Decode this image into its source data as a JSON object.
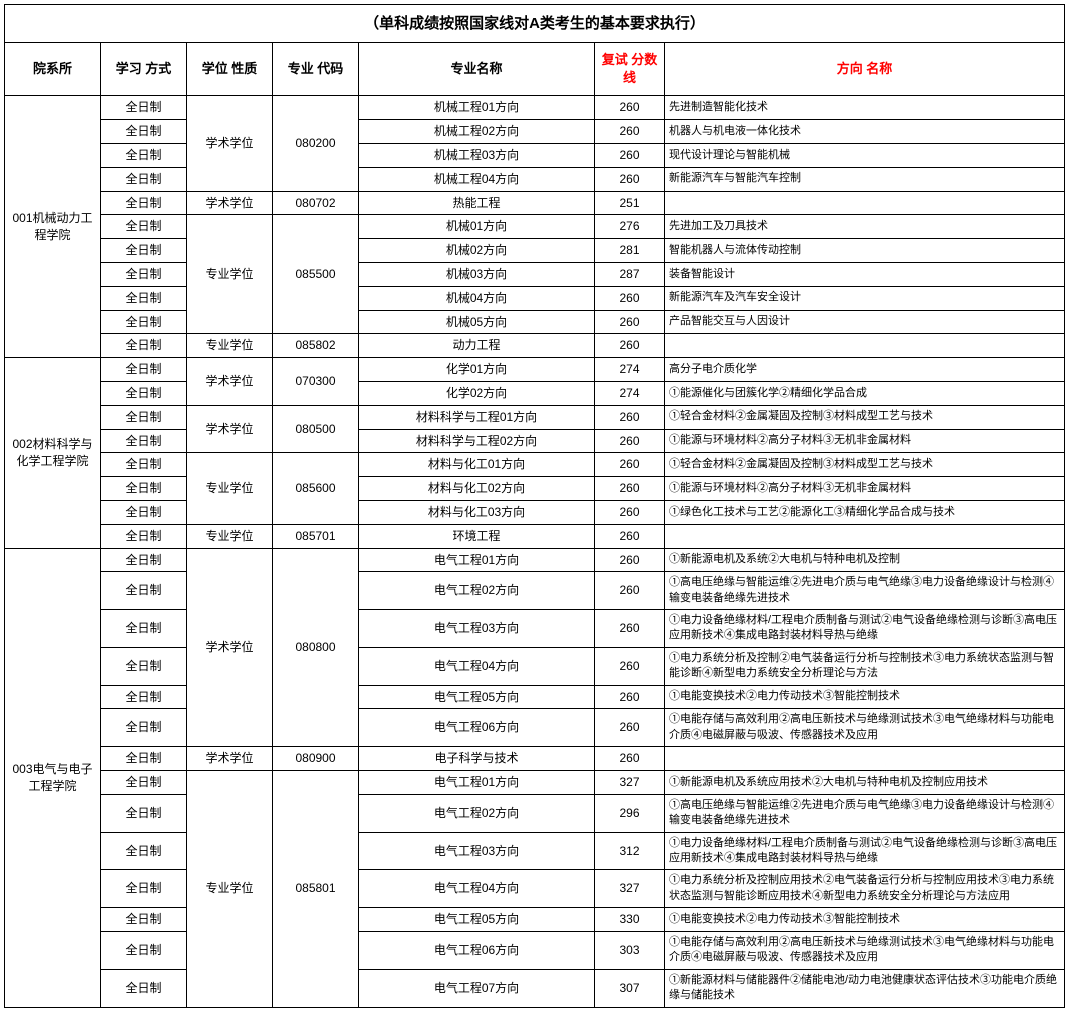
{
  "title": "（单科成绩按照国家线对A类考生的基本要求执行）",
  "headers": {
    "dept": "院系所",
    "study": "学习\n方式",
    "degree": "学位\n性质",
    "code": "专业\n代码",
    "major": "专业名称",
    "score": "复试\n分数线",
    "dir": "方向\n名称"
  },
  "colors": {
    "header_red": "#ff0000",
    "border": "#000000",
    "text": "#000000",
    "bg": "#ffffff"
  },
  "fontsize": {
    "title": 15,
    "header": 13,
    "cell": 12,
    "dir": 11
  },
  "depts": [
    {
      "name": "001机械动力工程学院",
      "rows": [
        {
          "study": "全日制",
          "degree": "学术学位",
          "degree_span": 4,
          "code": "080200",
          "code_span": 4,
          "major": "机械工程01方向",
          "score": "260",
          "dir": "先进制造智能化技术"
        },
        {
          "study": "全日制",
          "major": "机械工程02方向",
          "score": "260",
          "dir": "机器人与机电液一体化技术"
        },
        {
          "study": "全日制",
          "major": "机械工程03方向",
          "score": "260",
          "dir": "现代设计理论与智能机械"
        },
        {
          "study": "全日制",
          "major": "机械工程04方向",
          "score": "260",
          "dir": "新能源汽车与智能汽车控制"
        },
        {
          "study": "全日制",
          "degree": "学术学位",
          "degree_span": 1,
          "code": "080702",
          "code_span": 1,
          "major": "热能工程",
          "score": "251",
          "dir": ""
        },
        {
          "study": "全日制",
          "degree": "专业学位",
          "degree_span": 5,
          "code": "085500",
          "code_span": 5,
          "major": "机械01方向",
          "score": "276",
          "dir": "先进加工及刀具技术"
        },
        {
          "study": "全日制",
          "major": "机械02方向",
          "score": "281",
          "dir": "智能机器人与流体传动控制"
        },
        {
          "study": "全日制",
          "major": "机械03方向",
          "score": "287",
          "dir": "装备智能设计"
        },
        {
          "study": "全日制",
          "major": "机械04方向",
          "score": "260",
          "dir": "新能源汽车及汽车安全设计"
        },
        {
          "study": "全日制",
          "major": "机械05方向",
          "score": "260",
          "dir": "产品智能交互与人因设计"
        },
        {
          "study": "全日制",
          "degree": "专业学位",
          "degree_span": 1,
          "code": "085802",
          "code_span": 1,
          "major": "动力工程",
          "score": "260",
          "dir": ""
        }
      ]
    },
    {
      "name": "002材料科学与化学工程学院",
      "rows": [
        {
          "study": "全日制",
          "degree": "学术学位",
          "degree_span": 2,
          "code": "070300",
          "code_span": 2,
          "major": "化学01方向",
          "score": "274",
          "dir": "高分子电介质化学"
        },
        {
          "study": "全日制",
          "major": "化学02方向",
          "score": "274",
          "dir": "①能源催化与团簇化学②精细化学品合成"
        },
        {
          "study": "全日制",
          "degree": "学术学位",
          "degree_span": 2,
          "code": "080500",
          "code_span": 2,
          "major": "材料科学与工程01方向",
          "score": "260",
          "dir": "①轻合金材料②金属凝固及控制③材料成型工艺与技术"
        },
        {
          "study": "全日制",
          "major": "材料科学与工程02方向",
          "score": "260",
          "dir": "①能源与环境材料②高分子材料③无机非金属材料"
        },
        {
          "study": "全日制",
          "degree": "专业学位",
          "degree_span": 3,
          "code": "085600",
          "code_span": 3,
          "major": "材料与化工01方向",
          "score": "260",
          "dir": "①轻合金材料②金属凝固及控制③材料成型工艺与技术"
        },
        {
          "study": "全日制",
          "major": "材料与化工02方向",
          "score": "260",
          "dir": "①能源与环境材料②高分子材料③无机非金属材料"
        },
        {
          "study": "全日制",
          "major": "材料与化工03方向",
          "score": "260",
          "dir": "①绿色化工技术与工艺②能源化工③精细化学品合成与技术"
        },
        {
          "study": "全日制",
          "degree": "专业学位",
          "degree_span": 1,
          "code": "085701",
          "code_span": 1,
          "major": "环境工程",
          "score": "260",
          "dir": ""
        }
      ]
    },
    {
      "name": "003电气与电子工程学院",
      "rows": [
        {
          "study": "全日制",
          "degree": "学术学位",
          "degree_span": 6,
          "code": "080800",
          "code_span": 6,
          "major": "电气工程01方向",
          "score": "260",
          "dir": "①新能源电机及系统②大电机与特种电机及控制"
        },
        {
          "study": "全日制",
          "major": "电气工程02方向",
          "score": "260",
          "dir": "①高电压绝缘与智能运维②先进电介质与电气绝缘③电力设备绝缘设计与检测④输变电装备绝缘先进技术"
        },
        {
          "study": "全日制",
          "major": "电气工程03方向",
          "score": "260",
          "dir": "①电力设备绝缘材料/工程电介质制备与测试②电气设备绝缘检测与诊断③高电压应用新技术④集成电路封装材料导热与绝缘"
        },
        {
          "study": "全日制",
          "major": "电气工程04方向",
          "score": "260",
          "dir": "①电力系统分析及控制②电气装备运行分析与控制技术③电力系统状态监测与智能诊断④新型电力系统安全分析理论与方法"
        },
        {
          "study": "全日制",
          "major": "电气工程05方向",
          "score": "260",
          "dir": "①电能变换技术②电力传动技术③智能控制技术"
        },
        {
          "study": "全日制",
          "major": "电气工程06方向",
          "score": "260",
          "dir": "①电能存储与高效利用②高电压新技术与绝缘测试技术③电气绝缘材料与功能电介质④电磁屏蔽与吸波、传感器技术及应用"
        },
        {
          "study": "全日制",
          "degree": "学术学位",
          "degree_span": 1,
          "code": "080900",
          "code_span": 1,
          "major": "电子科学与技术",
          "score": "260",
          "dir": ""
        },
        {
          "study": "全日制",
          "degree": "专业学位",
          "degree_span": 7,
          "code": "085801",
          "code_span": 7,
          "major": "电气工程01方向",
          "score": "327",
          "dir": "①新能源电机及系统应用技术②大电机与特种电机及控制应用技术"
        },
        {
          "study": "全日制",
          "major": "电气工程02方向",
          "score": "296",
          "dir": "①高电压绝缘与智能运维②先进电介质与电气绝缘③电力设备绝缘设计与检测④输变电装备绝缘先进技术"
        },
        {
          "study": "全日制",
          "major": "电气工程03方向",
          "score": "312",
          "dir": "①电力设备绝缘材料/工程电介质制备与测试②电气设备绝缘检测与诊断③高电压应用新技术④集成电路封装材料导热与绝缘"
        },
        {
          "study": "全日制",
          "major": "电气工程04方向",
          "score": "327",
          "dir": "①电力系统分析及控制应用技术②电气装备运行分析与控制应用技术③电力系统状态监测与智能诊断应用技术④新型电力系统安全分析理论与方法应用"
        },
        {
          "study": "全日制",
          "major": "电气工程05方向",
          "score": "330",
          "dir": "①电能变换技术②电力传动技术③智能控制技术"
        },
        {
          "study": "全日制",
          "major": "电气工程06方向",
          "score": "303",
          "dir": "①电能存储与高效利用②高电压新技术与绝缘测试技术③电气绝缘材料与功能电介质④电磁屏蔽与吸波、传感器技术及应用"
        },
        {
          "study": "全日制",
          "major": "电气工程07方向",
          "score": "307",
          "dir": "①新能源材料与储能器件②储能电池/动力电池健康状态评估技术③功能电介质绝缘与储能技术"
        }
      ]
    }
  ]
}
